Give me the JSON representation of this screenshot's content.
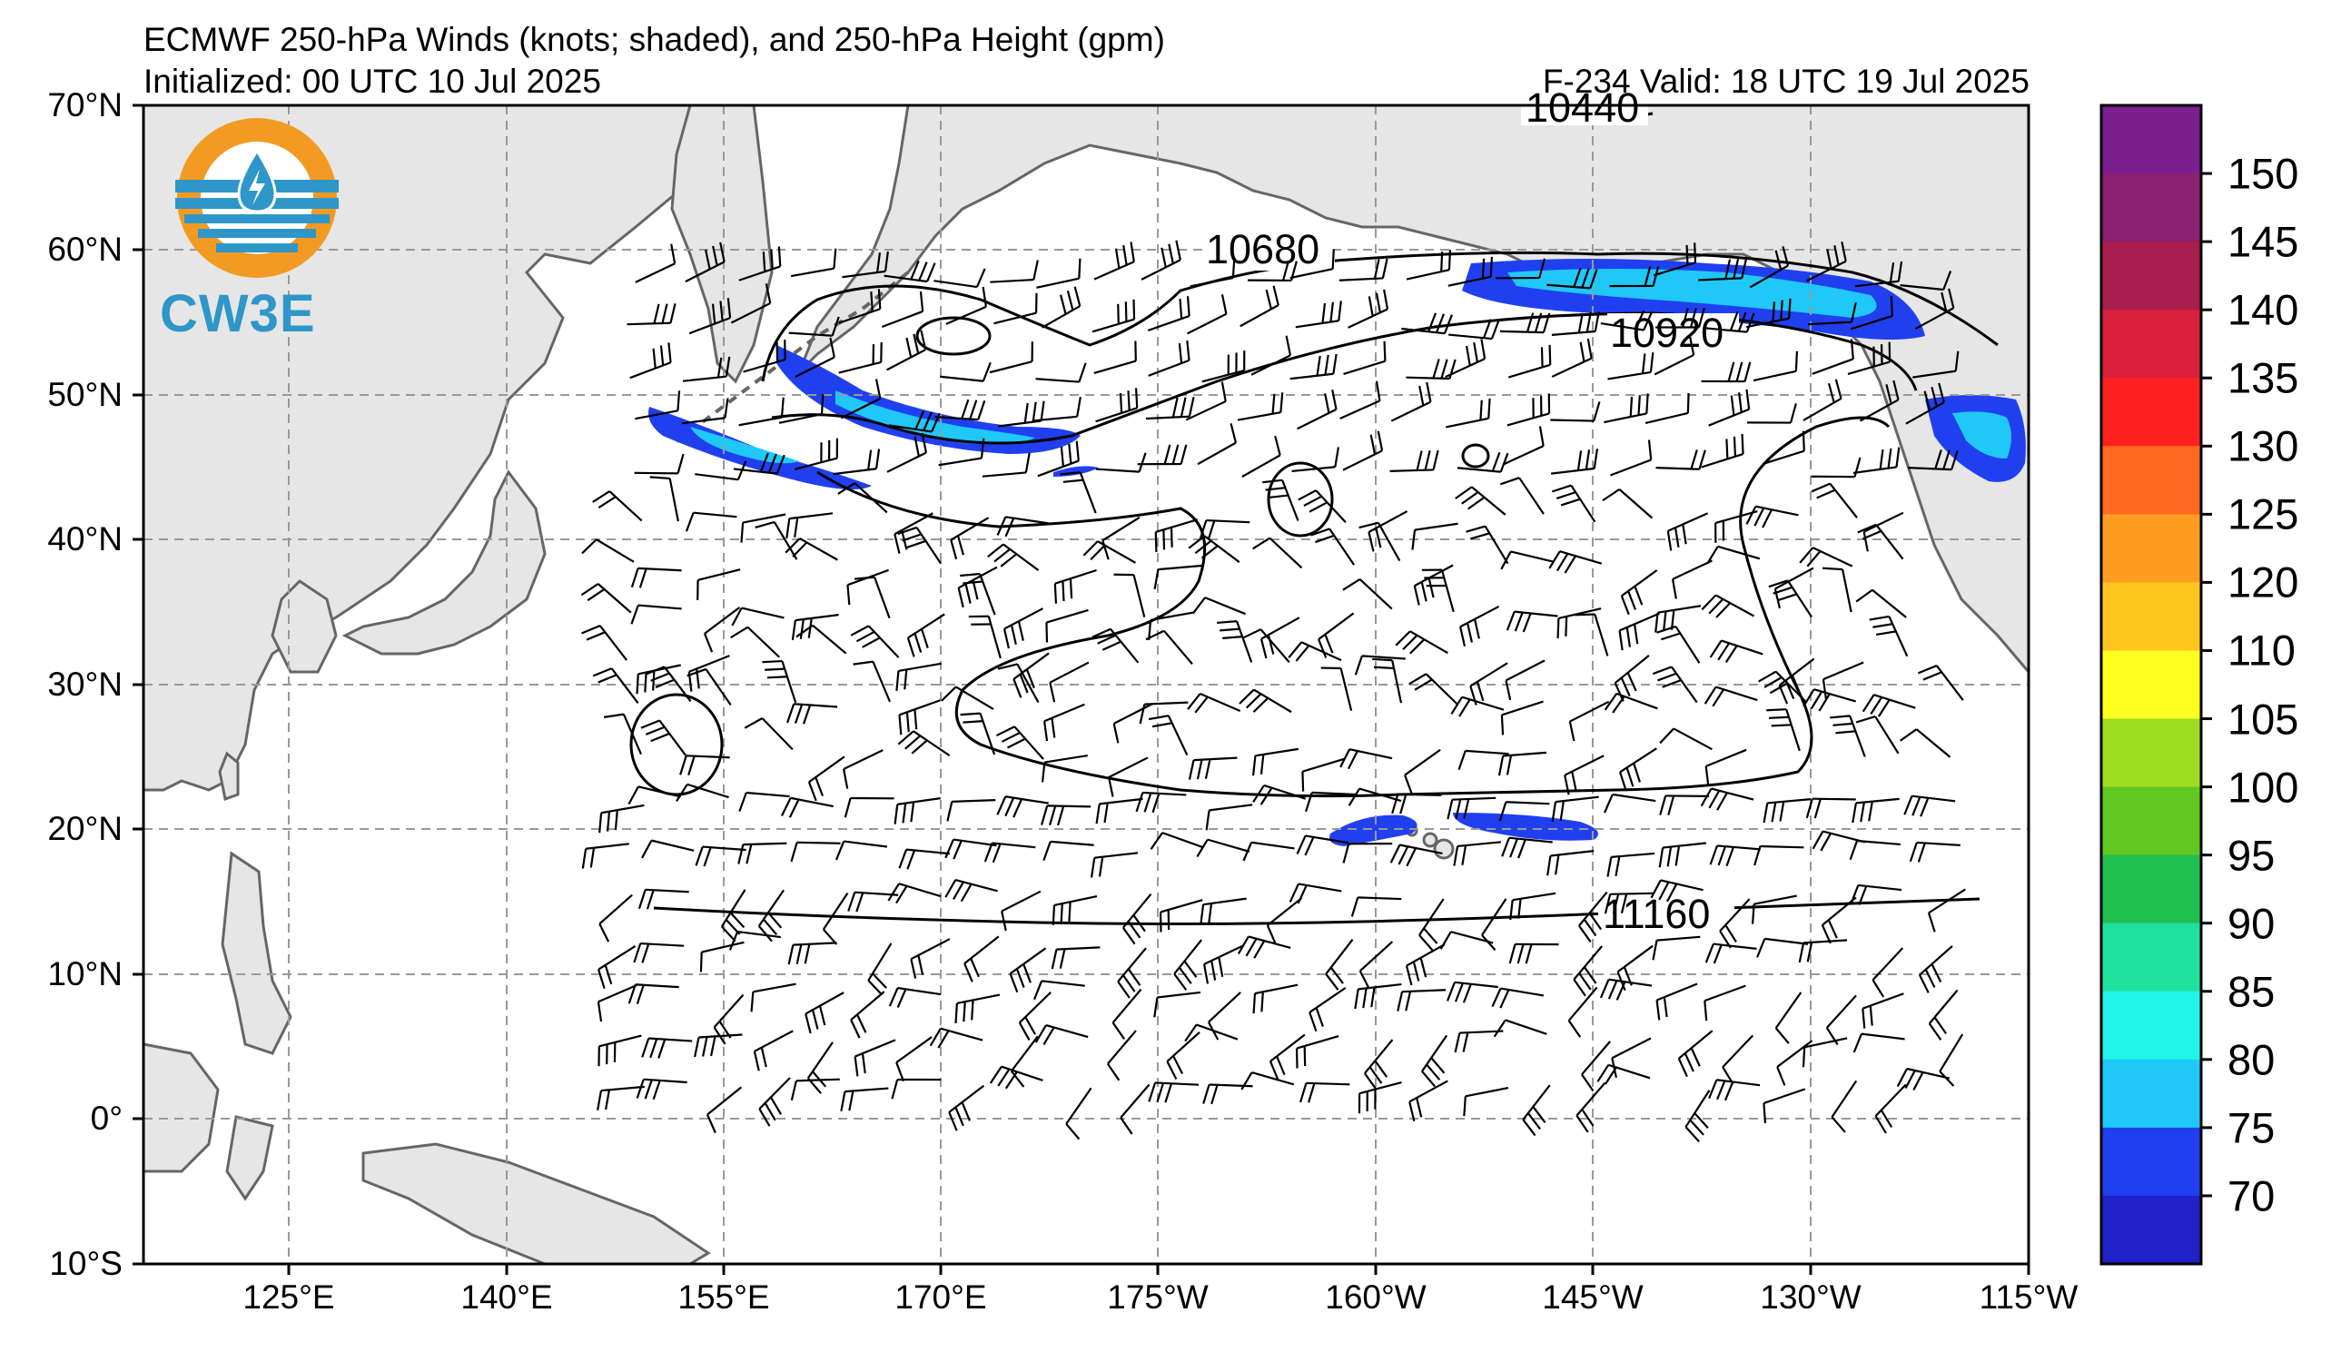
{
  "title": {
    "line1": "ECMWF 250-hPa Winds (knots; shaded), and 250-hPa Height (gpm)",
    "line2": "Initialized: 00 UTC 10 Jul 2025",
    "valid": "F-234  Valid: 18 UTC 19 Jul 2025"
  },
  "logo": {
    "text": "CW3E",
    "colors": {
      "orange": "#f39a22",
      "blue": "#2e96c8"
    }
  },
  "map": {
    "lat_labels": [
      "70°N",
      "60°N",
      "50°N",
      "40°N",
      "30°N",
      "20°N",
      "10°N",
      "0°",
      "10°S"
    ],
    "lon_labels": [
      "125°E",
      "140°E",
      "155°E",
      "170°E",
      "175°W",
      "160°W",
      "145°W",
      "130°W",
      "115°W"
    ],
    "land_color": "#e6e6e6",
    "coast_color": "#666666",
    "grid_style": "dashed gray"
  },
  "contours": {
    "labels": [
      "10440",
      "10680",
      "10920",
      "11160"
    ]
  },
  "jet_streaks": [
    {
      "region": "north-pacific-west",
      "min_knots": 70,
      "max_knots": 90
    },
    {
      "region": "gulf-of-alaska",
      "min_knots": 70,
      "max_knots": 90
    },
    {
      "region": "pacific-northwest-coast",
      "min_knots": 70,
      "max_knots": 90
    },
    {
      "region": "north-of-hawaii",
      "min_knots": 70,
      "max_knots": 80
    }
  ],
  "colorbar": {
    "labels": [
      "150",
      "145",
      "140",
      "135",
      "130",
      "125",
      "120",
      "110",
      "105",
      "100",
      "95",
      "90",
      "85",
      "80",
      "75",
      "70"
    ],
    "colors": [
      "#7a1f8f",
      "#8b2070",
      "#a81e4e",
      "#d8203a",
      "#ff2020",
      "#ff6a20",
      "#ff9c20",
      "#ffc520",
      "#ffff20",
      "#9fdc20",
      "#60c820",
      "#20c050",
      "#20e0a0",
      "#20f5e8",
      "#20c8f8",
      "#2040f0",
      "#2020c8"
    ]
  }
}
